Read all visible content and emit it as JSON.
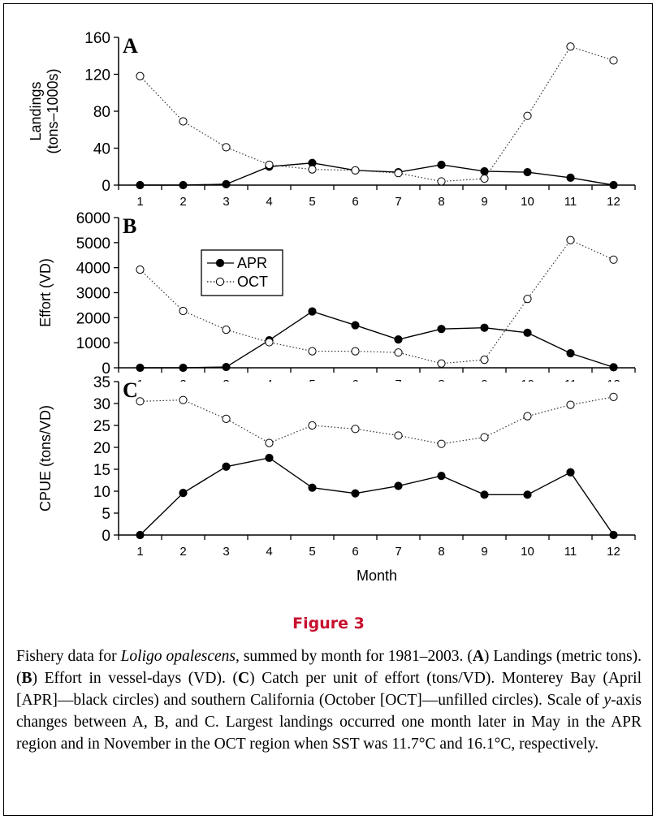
{
  "figure": {
    "title": "Figure 3",
    "caption_parts": [
      {
        "t": "Fishery data for "
      },
      {
        "t": "Loligo opalescens,",
        "i": true
      },
      {
        "t": " summed by month for 1981–2003. ("
      },
      {
        "t": "A",
        "b": true
      },
      {
        "t": ") Landings (metric tons). ("
      },
      {
        "t": "B",
        "b": true
      },
      {
        "t": ") Effort in vessel-days (VD). ("
      },
      {
        "t": "C",
        "b": true
      },
      {
        "t": ") Catch per unit of effort (tons/VD). Monterey Bay (April [APR]—black circles) and southern California (October [OCT]—unfilled circles). Scale of "
      },
      {
        "t": "y",
        "i": true
      },
      {
        "t": "-axis changes between A, B, and C. Largest landings occurred one month later in May in the APR region and in November in the OCT region when SST was 11.7°C and 16.1°C, respectively."
      }
    ]
  },
  "legend": {
    "entries": [
      "APR",
      "OCT"
    ],
    "placement": "upper-left of panel B"
  },
  "chart_data": [
    {
      "type": "line",
      "panel": "A",
      "title": "",
      "xlabel": "",
      "ylabel_lines": [
        "Landings",
        "(tons–1000s)"
      ],
      "x": [
        1,
        2,
        3,
        4,
        5,
        6,
        7,
        8,
        9,
        10,
        11,
        12
      ],
      "ylim": [
        0,
        160
      ],
      "yticks": [
        0,
        40,
        80,
        120,
        160
      ],
      "grid": false,
      "series": [
        {
          "name": "APR",
          "marker": "filled",
          "values": [
            0,
            0,
            1,
            20,
            24,
            16,
            14,
            22,
            15,
            14,
            8,
            0
          ]
        },
        {
          "name": "OCT",
          "marker": "open",
          "values": [
            118,
            69,
            41,
            22,
            17,
            16,
            13,
            4,
            7,
            75,
            150,
            135
          ]
        }
      ]
    },
    {
      "type": "line",
      "panel": "B",
      "title": "",
      "xlabel": "",
      "ylabel_lines": [
        "Effort (VD)"
      ],
      "x": [
        1,
        2,
        3,
        4,
        5,
        6,
        7,
        8,
        9,
        10,
        11,
        12
      ],
      "ylim": [
        0,
        6000
      ],
      "yticks": [
        0,
        1000,
        2000,
        3000,
        4000,
        5000,
        6000
      ],
      "grid": false,
      "series": [
        {
          "name": "APR",
          "marker": "filled",
          "values": [
            0,
            0,
            30,
            1100,
            2250,
            1700,
            1130,
            1550,
            1600,
            1400,
            580,
            20
          ]
        },
        {
          "name": "OCT",
          "marker": "open",
          "values": [
            3920,
            2270,
            1520,
            1020,
            660,
            660,
            610,
            170,
            320,
            2750,
            5100,
            4320
          ]
        }
      ]
    },
    {
      "type": "line",
      "panel": "C",
      "title": "",
      "xlabel": "Month",
      "ylabel_lines": [
        "CPUE (tons/VD)"
      ],
      "x": [
        1,
        2,
        3,
        4,
        5,
        6,
        7,
        8,
        9,
        10,
        11,
        12
      ],
      "ylim": [
        0,
        35
      ],
      "yticks": [
        0,
        5,
        10,
        15,
        20,
        25,
        30,
        35
      ],
      "grid": false,
      "series": [
        {
          "name": "APR",
          "marker": "filled",
          "values": [
            0,
            9.6,
            15.6,
            17.6,
            10.8,
            9.5,
            11.2,
            13.5,
            9.2,
            9.2,
            14.3,
            0
          ]
        },
        {
          "name": "OCT",
          "marker": "open",
          "values": [
            30.5,
            30.8,
            26.5,
            21.0,
            25.0,
            24.2,
            22.7,
            20.8,
            22.3,
            27.1,
            29.7,
            31.5
          ]
        }
      ]
    }
  ]
}
